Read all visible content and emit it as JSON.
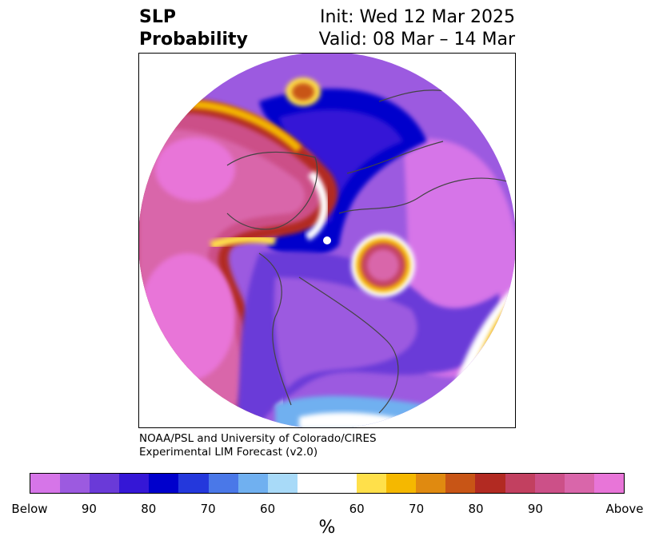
{
  "title": {
    "left_line1": "SLP",
    "left_line2": "Probability",
    "right_line1": "Init: Wed 12 Mar 2025",
    "right_line2": "Valid: 08 Mar – 14 Mar"
  },
  "credit": {
    "line1": "NOAA/PSL and University of Colorado/CIRES",
    "line2": "Experimental LIM Forecast (v2.0)"
  },
  "colorbar": {
    "colors": [
      "#d675e8",
      "#9c5ae0",
      "#6a3ad8",
      "#3517d6",
      "#0000cc",
      "#2438dc",
      "#4a78e8",
      "#70b0f0",
      "#a8daf8",
      "#ffffff",
      "#ffffff",
      "#ffe04a",
      "#f5b800",
      "#e08a10",
      "#c85516",
      "#b22a22",
      "#c24060",
      "#cc5088",
      "#d966aa",
      "#e875d8"
    ],
    "ticks": [
      "Below",
      "90",
      "80",
      "70",
      "60",
      "60",
      "70",
      "80",
      "90",
      "Above"
    ],
    "unit": "%"
  }
}
